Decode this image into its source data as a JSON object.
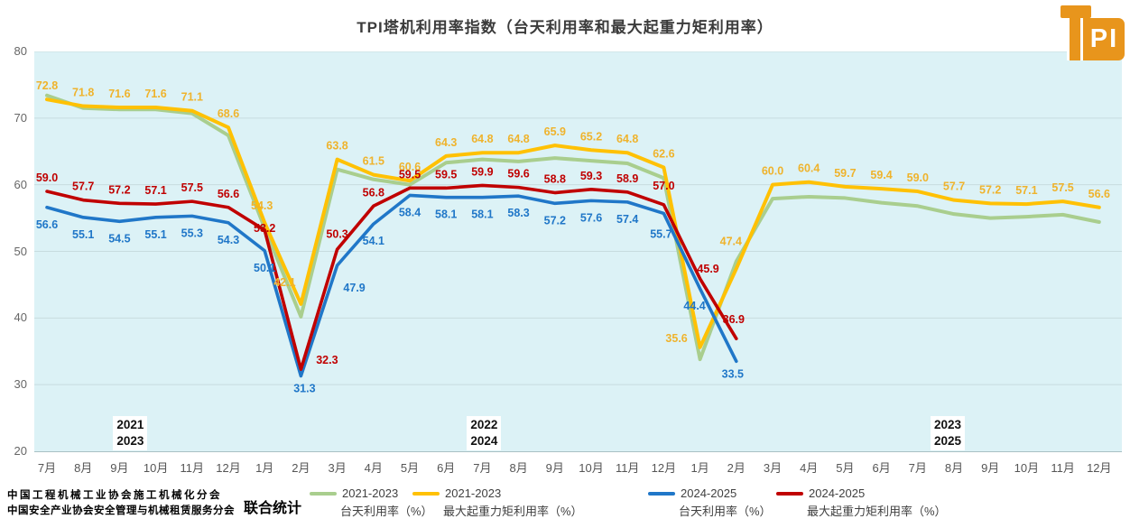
{
  "title": "TPI塔机利用率指数（台天利用率和最大起重力矩利用率）",
  "logo": {
    "pi": "PI",
    "color": "#E8951C"
  },
  "source": {
    "line1": "中国工程机械工业协会施工机械化分会",
    "line2": "中国安全产业协会安全管理与机械租赁服务分会",
    "suffix": "联合统计"
  },
  "chart_data": {
    "type": "line",
    "title": "TPI塔机利用率指数（台天利用率和最大起重力矩利用率）",
    "xlabel": "",
    "ylabel": "",
    "ylim": [
      20,
      80
    ],
    "y_ticks": [
      80,
      70,
      60,
      50,
      40,
      30,
      20
    ],
    "grid": true,
    "legend_position": "bottom",
    "plot_background": "#DCF2F6",
    "x_labels": [
      "7月",
      "8月",
      "9月",
      "10月",
      "11月",
      "12月",
      "1月",
      "2月",
      "3月",
      "4月",
      "5月",
      "6月",
      "7月",
      "8月",
      "9月",
      "10月",
      "11月",
      "12月",
      "1月",
      "2月",
      "3月",
      "4月",
      "5月",
      "6月",
      "7月",
      "8月",
      "9月",
      "10月",
      "11月",
      "12月"
    ],
    "year_markers": [
      {
        "top": "2021",
        "bottom": "2023",
        "month_index": 2
      },
      {
        "top": "2022",
        "bottom": "2024",
        "month_index": 12
      },
      {
        "top": "2023",
        "bottom": "2025",
        "month_index": 25
      }
    ],
    "series": [
      {
        "key": "green",
        "name": "2021-2023 台天利用率（%）",
        "legend_line1": "2021-2023",
        "legend_line2": "台天利用率（%）",
        "color": "#A9CE8E",
        "label_color": "#A9CE8E",
        "show_labels": false,
        "values_estimated": true,
        "values": [
          73.4,
          71.5,
          71.3,
          71.3,
          70.7,
          67.4,
          53.5,
          40.2,
          62.3,
          60.8,
          60.0,
          63.3,
          63.8,
          63.5,
          64.0,
          63.6,
          63.2,
          61.0,
          33.8,
          48.5,
          57.9,
          58.2,
          58.0,
          57.3,
          56.8,
          55.6,
          55.0,
          55.2,
          55.5,
          54.4
        ]
      },
      {
        "key": "yellow",
        "name": "2021-2023 最大起重力矩利用率（%）",
        "legend_line1": "2021-2023",
        "legend_line2": "最大起重力矩利用率（%）",
        "color": "#FFC104",
        "label_color": "#EFB32C",
        "label_side": "above",
        "show_labels": true,
        "values": [
          72.8,
          71.8,
          71.6,
          71.6,
          71.1,
          68.6,
          54.3,
          42.1,
          63.8,
          61.5,
          60.6,
          64.3,
          64.8,
          64.8,
          65.9,
          65.2,
          64.8,
          62.6,
          35.6,
          47.4,
          60.0,
          60.4,
          59.7,
          59.4,
          59.0,
          57.7,
          57.2,
          57.1,
          57.5,
          56.6
        ]
      },
      {
        "key": "blue",
        "name": "2024-2025 台天利用率（%）",
        "legend_line1": "2024-2025",
        "legend_line2": "台天利用率（%）",
        "color": "#2077C8",
        "label_color": "#2077C8",
        "label_side": "below",
        "show_labels": true,
        "values": [
          56.6,
          55.1,
          54.5,
          55.1,
          55.3,
          54.3,
          50.1,
          31.3,
          47.9,
          54.1,
          58.4,
          58.1,
          58.1,
          58.3,
          57.2,
          57.6,
          57.4,
          55.7,
          44.4,
          33.5
        ]
      },
      {
        "key": "red",
        "name": "2024-2025 最大起重力矩利用率（%）",
        "legend_line1": "2024-2025",
        "legend_line2": "最大起重力矩利用率（%）",
        "color": "#C00000",
        "label_color": "#C00000",
        "label_side": "above",
        "show_labels": true,
        "values": [
          59.0,
          57.7,
          57.2,
          57.1,
          57.5,
          56.6,
          53.2,
          32.3,
          50.3,
          56.8,
          59.5,
          59.5,
          59.9,
          59.6,
          58.8,
          59.3,
          58.9,
          57.0,
          45.9,
          36.9
        ]
      }
    ]
  }
}
